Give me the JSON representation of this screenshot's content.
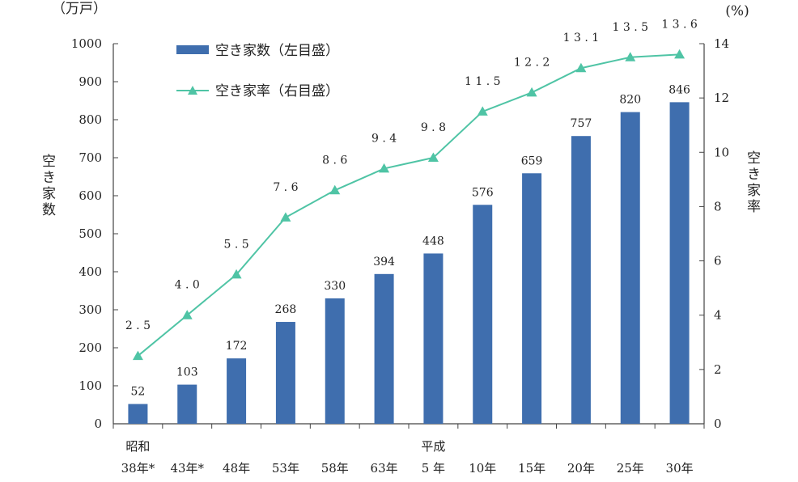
{
  "chart_data": {
    "type": "bar",
    "categories": [
      "38年*",
      "43年*",
      "48年",
      "53年",
      "58年",
      "63年",
      "5 年",
      "10年",
      "15年",
      "20年",
      "25年",
      "30年"
    ],
    "era_labels": [
      {
        "label": "昭和",
        "category_index": 0
      },
      {
        "label": "平成",
        "category_index": 6
      }
    ],
    "series": [
      {
        "name": "空き家数（左目盛）",
        "kind": "bar",
        "axis": "left",
        "values": [
          52,
          103,
          172,
          268,
          330,
          394,
          448,
          576,
          659,
          757,
          820,
          846
        ],
        "labels": [
          "52",
          "103",
          "172",
          "268",
          "330",
          "394",
          "448",
          "576",
          "659",
          "757",
          "820",
          "846"
        ]
      },
      {
        "name": "空き家率（右目盛）",
        "kind": "line",
        "axis": "right",
        "values": [
          2.5,
          4.0,
          5.5,
          7.6,
          8.6,
          9.4,
          9.8,
          11.5,
          12.2,
          13.1,
          13.5,
          13.6
        ],
        "labels": [
          "2.5",
          "4.0",
          "5.5",
          "7.6",
          "8.6",
          "9.4",
          "9.8",
          "11.5",
          "12.2",
          "13.1",
          "13.5",
          "13.6"
        ]
      }
    ],
    "y_left": {
      "unit": "（万戸）",
      "label": "空き家数",
      "lim": [
        0,
        1000
      ],
      "ticks": [
        "0",
        "100",
        "200",
        "300",
        "400",
        "500",
        "600",
        "700",
        "800",
        "900",
        "1000"
      ]
    },
    "y_right": {
      "unit": "(%)",
      "label": "空き家率",
      "lim": [
        0,
        14
      ],
      "ticks": [
        "0",
        "2",
        "4",
        "6",
        "8",
        "10",
        "12",
        "14"
      ]
    },
    "legend_position": "top-left",
    "grid": false,
    "colors": {
      "bar": "#3f6eae",
      "line": "#4fc4a5",
      "marker": "#4fc4a5"
    }
  }
}
